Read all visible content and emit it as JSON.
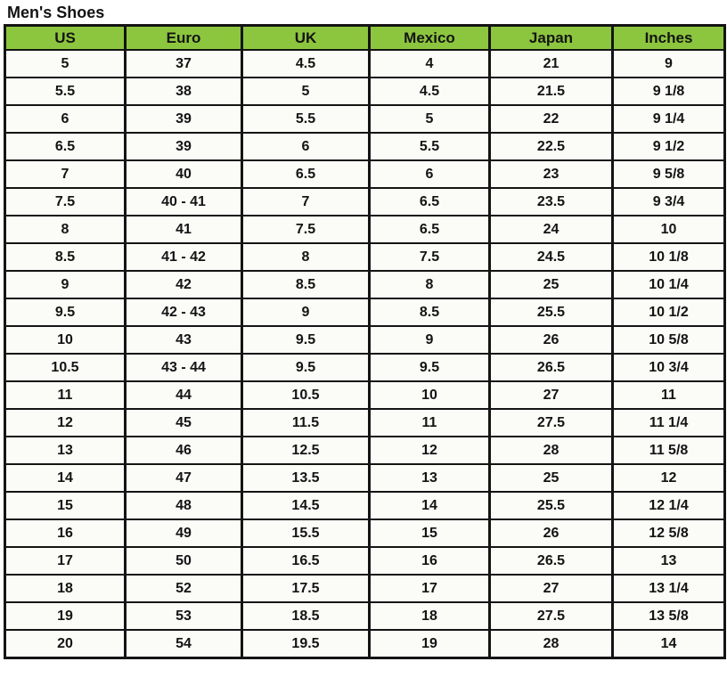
{
  "page": {
    "title": "Men's Shoes"
  },
  "colors": {
    "header_bg": "#8CC63E",
    "grid": "#141414",
    "cell_bg": "#FBFBF8",
    "text": "#141414",
    "page_bg": "#FFFFFF"
  },
  "chart_data": {
    "type": "table",
    "title": "Men's Shoes",
    "columns": [
      "US",
      "Euro",
      "UK",
      "Mexico",
      "Japan",
      "Inches"
    ],
    "rows": [
      [
        "5",
        "37",
        "4.5",
        "4",
        "21",
        "9"
      ],
      [
        "5.5",
        "38",
        "5",
        "4.5",
        "21.5",
        "9 1/8"
      ],
      [
        "6",
        "39",
        "5.5",
        "5",
        "22",
        "9 1/4"
      ],
      [
        "6.5",
        "39",
        "6",
        "5.5",
        "22.5",
        "9 1/2"
      ],
      [
        "7",
        "40",
        "6.5",
        "6",
        "23",
        "9 5/8"
      ],
      [
        "7.5",
        "40 - 41",
        "7",
        "6.5",
        "23.5",
        "9 3/4"
      ],
      [
        "8",
        "41",
        "7.5",
        "6.5",
        "24",
        "10"
      ],
      [
        "8.5",
        "41 - 42",
        "8",
        "7.5",
        "24.5",
        "10 1/8"
      ],
      [
        "9",
        "42",
        "8.5",
        "8",
        "25",
        "10 1/4"
      ],
      [
        "9.5",
        "42 - 43",
        "9",
        "8.5",
        "25.5",
        "10 1/2"
      ],
      [
        "10",
        "43",
        "9.5",
        "9",
        "26",
        "10 5/8"
      ],
      [
        "10.5",
        "43 - 44",
        "9.5",
        "9.5",
        "26.5",
        "10 3/4"
      ],
      [
        "11",
        "44",
        "10.5",
        "10",
        "27",
        "11"
      ],
      [
        "12",
        "45",
        "11.5",
        "11",
        "27.5",
        "11 1/4"
      ],
      [
        "13",
        "46",
        "12.5",
        "12",
        "28",
        "11 5/8"
      ],
      [
        "14",
        "47",
        "13.5",
        "13",
        "25",
        "12"
      ],
      [
        "15",
        "48",
        "14.5",
        "14",
        "25.5",
        "12 1/4"
      ],
      [
        "16",
        "49",
        "15.5",
        "15",
        "26",
        "12 5/8"
      ],
      [
        "17",
        "50",
        "16.5",
        "16",
        "26.5",
        "13"
      ],
      [
        "18",
        "52",
        "17.5",
        "17",
        "27",
        "13 1/4"
      ],
      [
        "19",
        "53",
        "18.5",
        "18",
        "27.5",
        "13 5/8"
      ],
      [
        "20",
        "54",
        "19.5",
        "19",
        "28",
        "14"
      ]
    ]
  }
}
